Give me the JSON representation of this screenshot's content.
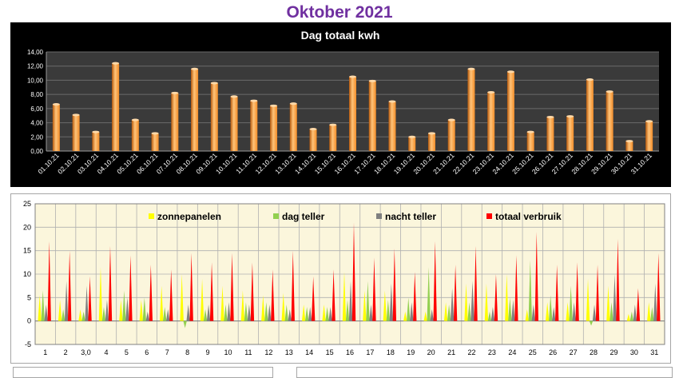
{
  "page": {
    "title": "Oktober 2021"
  },
  "chart_data": [
    {
      "type": "bar",
      "title": "Dag totaal kwh",
      "xlabel": "",
      "ylabel": "",
      "ylim": [
        0,
        14
      ],
      "yticks": [
        "0,00",
        "2,00",
        "4,00",
        "6,00",
        "8,00",
        "10,00",
        "12,00",
        "14,00"
      ],
      "grid": true,
      "legend": "none",
      "colors": {
        "background": "#000000",
        "plot": "#3a3a3a",
        "bar": "#f28c28",
        "bar_highlight": "#ffc47a",
        "text": "#ffffff"
      },
      "categories": [
        "01.10.21",
        "02.10.21",
        "03.10.21",
        "04.10.21",
        "05.10.21",
        "06.10.21",
        "07.10.21",
        "08.10.21",
        "09.10.21",
        "10.10.21",
        "11.10.21",
        "12.10.21",
        "13.10.21",
        "14.10.21",
        "15.10.21",
        "16.10.21",
        "17.10.21",
        "18.10.21",
        "19.10.21",
        "20.10.21",
        "21.10.21",
        "22.10.21",
        "23.10.21",
        "24.10.21",
        "25.10.21",
        "26.10.21",
        "27.10.21",
        "28.10.21",
        "29.10.21",
        "30.10.21",
        "31.10.21"
      ],
      "values": [
        6.6,
        5.1,
        2.7,
        12.4,
        4.4,
        2.5,
        8.2,
        11.6,
        9.6,
        7.7,
        7.1,
        6.4,
        6.7,
        3.1,
        3.7,
        10.5,
        9.9,
        7.0,
        2.0,
        2.5,
        4.4,
        11.6,
        8.3,
        11.2,
        2.7,
        4.8,
        4.9,
        10.1,
        8.4,
        1.4,
        4.2
      ]
    },
    {
      "type": "bar",
      "xlabel": "",
      "ylabel": "",
      "ylim": [
        -5,
        25
      ],
      "yticks": [
        "-5",
        "0",
        "5",
        "10",
        "15",
        "20",
        "25"
      ],
      "grid": true,
      "legend": "top, inside plot",
      "colors": {
        "zonnepanelen": "#ffff00",
        "dag_teller": "#92d050",
        "nacht_teller": "#808080",
        "totaal_verbruik": "#ff0000",
        "plot": "#fbf6dc"
      },
      "categories": [
        "1",
        "2",
        "3,0",
        "4",
        "5",
        "6",
        "7",
        "8",
        "9",
        "10",
        "11",
        "12",
        "13",
        "14",
        "15",
        "16",
        "17",
        "18",
        "19",
        "20",
        "21",
        "22",
        "23",
        "24",
        "25",
        "26",
        "27",
        "28",
        "29",
        "30",
        "31"
      ],
      "series": [
        {
          "name": "zonnepanelen",
          "values": [
            5.5,
            4.5,
            2.5,
            11.5,
            4.5,
            4.5,
            7.5,
            10.0,
            9.0,
            7.5,
            6.5,
            5.5,
            6.0,
            3.5,
            3.5,
            10.5,
            6.5,
            6.5,
            2.0,
            2.0,
            4.0,
            8.0,
            8.0,
            10.0,
            2.5,
            4.0,
            4.0,
            9.0,
            7.5,
            1.5,
            4.0
          ]
        },
        {
          "name": "dag teller",
          "values": [
            6.5,
            2.5,
            2.0,
            3.0,
            6.5,
            5.0,
            3.0,
            -1.5,
            2.5,
            3.5,
            4.0,
            4.0,
            3.5,
            3.0,
            3.0,
            4.5,
            8.5,
            4.5,
            5.0,
            11.5,
            3.5,
            4.0,
            2.0,
            5.0,
            13.0,
            5.5,
            7.5,
            -1.0,
            4.0,
            2.0,
            3.0
          ]
        },
        {
          "name": "nacht teller",
          "values": [
            3.5,
            8.5,
            7.5,
            4.5,
            5.0,
            2.0,
            2.5,
            3.5,
            3.5,
            4.0,
            3.5,
            3.5,
            2.5,
            3.0,
            3.0,
            8.5,
            3.5,
            8.0,
            4.0,
            2.5,
            7.0,
            8.5,
            3.0,
            4.5,
            3.5,
            3.0,
            4.0,
            3.5,
            10.0,
            3.5,
            8.0
          ]
        },
        {
          "name": "totaal verbruik",
          "values": [
            17.0,
            15.0,
            9.5,
            16.0,
            14.0,
            12.0,
            11.0,
            14.5,
            12.5,
            14.5,
            12.5,
            11.0,
            15.0,
            9.5,
            11.0,
            21.0,
            13.5,
            15.5,
            10.5,
            17.0,
            12.0,
            16.0,
            10.0,
            14.0,
            19.0,
            12.0,
            12.5,
            12.0,
            17.5,
            7.0,
            14.5
          ]
        }
      ]
    }
  ]
}
